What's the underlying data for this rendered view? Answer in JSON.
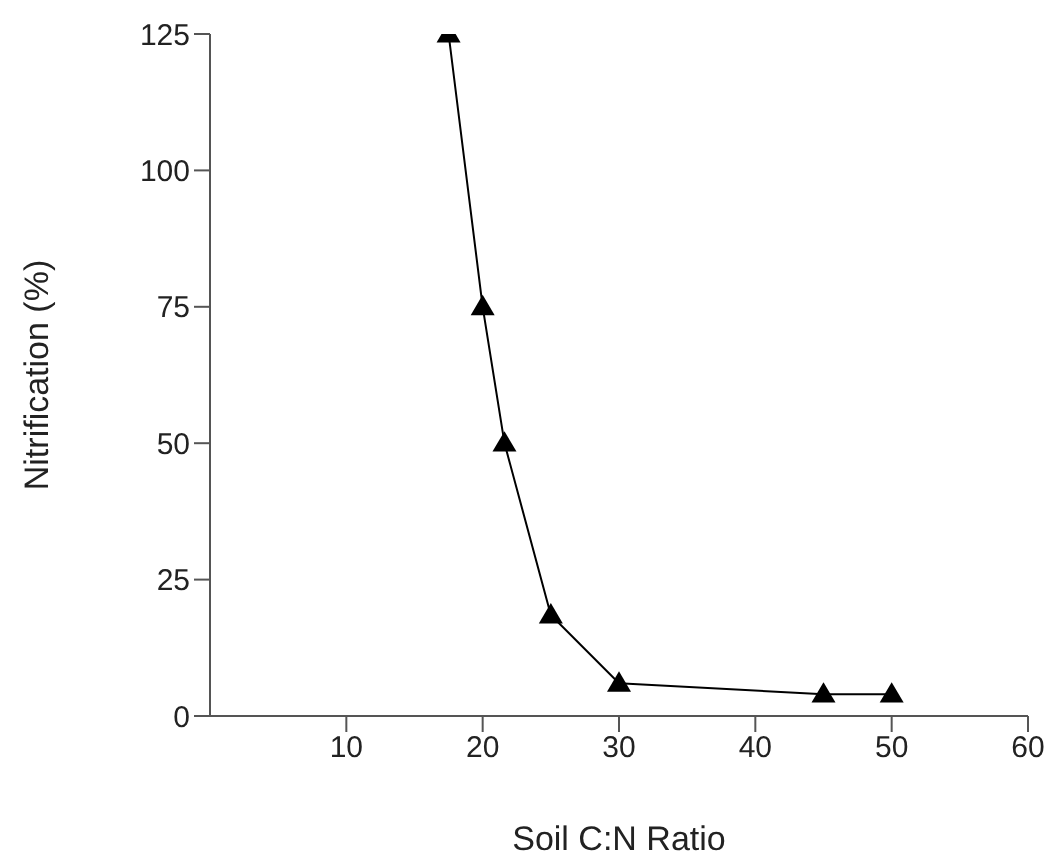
{
  "chart_data": {
    "type": "line",
    "xlabel": "Soil C:N Ratio",
    "ylabel": "Nitrification (%)",
    "x": [
      17.5,
      20,
      21.6,
      25,
      30,
      45,
      50
    ],
    "series": [
      {
        "color": "#000000",
        "values": [
          125,
          75,
          50,
          18.5,
          6,
          4,
          4
        ]
      }
    ],
    "xlim": [
      0,
      60
    ],
    "xticks": [
      10,
      20,
      30,
      40,
      50,
      60
    ],
    "ylim": [
      0,
      125
    ],
    "yticks": [
      0,
      25,
      50,
      75,
      100,
      125
    ],
    "grid": false,
    "legend": false,
    "marker": "triangle",
    "line_style": "solid"
  }
}
